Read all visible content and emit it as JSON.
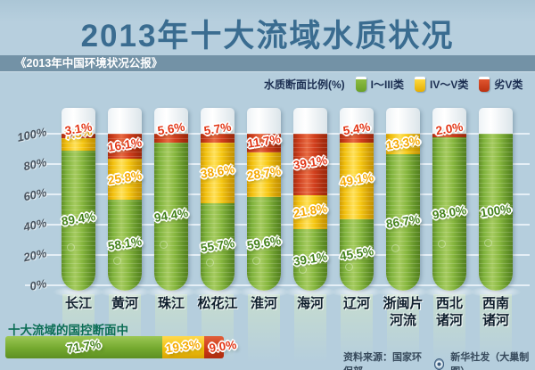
{
  "header": {
    "title": "2013年十大流域水质状况",
    "subtitle": "《2013年中国环境状况公报》"
  },
  "legend": {
    "label": "水质断面比例(%)",
    "items": [
      {
        "name": "I～III类",
        "color": "#74a92f"
      },
      {
        "name": "IV～V类",
        "color": "#f3c20d"
      },
      {
        "name": "劣V类",
        "color": "#cf3a18"
      }
    ]
  },
  "axis": {
    "ticks": [
      "100%",
      "80%",
      "60%",
      "40%",
      "20%",
      "0%"
    ]
  },
  "chart_data": {
    "type": "bar",
    "stacked": true,
    "unit": "%",
    "title": "2013年十大流域水质状况",
    "categories": [
      "长江",
      "黄河",
      "珠江",
      "松花江",
      "淮河",
      "海河",
      "辽河",
      "浙闽片河流",
      "西北诸河",
      "西南诸河"
    ],
    "category_labels": [
      "长江",
      "黄河",
      "珠江",
      "松花江",
      "淮河",
      "海河",
      "辽河",
      "浙闽片\n河流",
      "西北\n诸河",
      "西南\n诸河"
    ],
    "series": [
      {
        "name": "I～III类",
        "color": "#74a92f",
        "values": [
          89.4,
          58.1,
          94.4,
          55.7,
          59.6,
          39.1,
          45.5,
          86.7,
          98.0,
          100
        ]
      },
      {
        "name": "IV～V类",
        "color": "#f3c20d",
        "values": [
          7.5,
          25.8,
          0,
          38.6,
          28.7,
          21.8,
          49.1,
          13.3,
          0,
          0
        ]
      },
      {
        "name": "劣V类",
        "color": "#cf3a18",
        "values": [
          3.1,
          16.1,
          5.6,
          5.7,
          11.7,
          39.1,
          5.4,
          0,
          2.0,
          0
        ]
      }
    ],
    "ylim": [
      0,
      100
    ],
    "grid": true,
    "legend_position": "top-right"
  },
  "summary": {
    "label": "十大流域的国控断面中",
    "segments": [
      {
        "name": "I～III类",
        "value": 71.7,
        "color": "#74a92f"
      },
      {
        "name": "IV～V类",
        "value": 19.3,
        "color": "#f3c20d"
      },
      {
        "name": "劣V类",
        "value": 9.0,
        "color": "#cf3a18"
      }
    ]
  },
  "footer": {
    "source": "资料来源：国家环保部",
    "credit": "新华社发（大巢制图）"
  }
}
